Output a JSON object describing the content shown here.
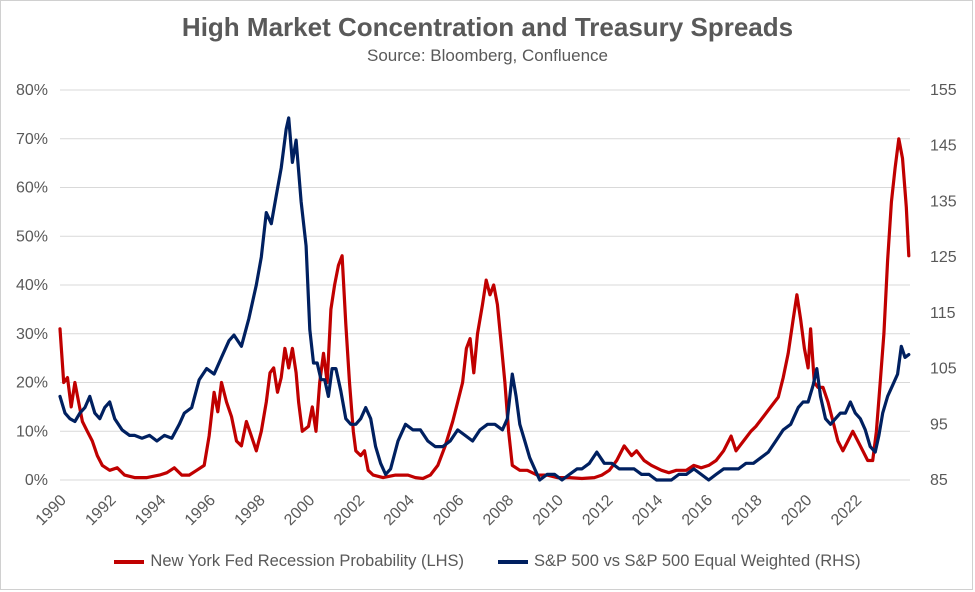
{
  "chart_data": {
    "type": "line",
    "title": "High Market Concentration and Treasury Spreads",
    "subtitle": "Source: Bloomberg, Confluence",
    "x_ticks": [
      "1990",
      "1992",
      "1994",
      "1996",
      "1998",
      "2000",
      "2002",
      "2004",
      "2006",
      "2008",
      "2010",
      "2012",
      "2014",
      "2016",
      "2018",
      "2020",
      "2022"
    ],
    "xlim": [
      1990,
      2024.2
    ],
    "y_left": {
      "ticks": [
        "0%",
        "10%",
        "20%",
        "30%",
        "40%",
        "50%",
        "60%",
        "70%",
        "80%"
      ],
      "lim": [
        0,
        80
      ]
    },
    "y_right": {
      "ticks": [
        "85",
        "95",
        "105",
        "115",
        "125",
        "135",
        "145",
        "155"
      ],
      "lim": [
        85,
        155
      ]
    },
    "grid": "horizontal",
    "legend_position": "bottom",
    "series": [
      {
        "name": "New York Fed Recession Probability (LHS)",
        "axis": "left",
        "color": "#c00000",
        "points": [
          [
            1990.0,
            31
          ],
          [
            1990.15,
            20
          ],
          [
            1990.3,
            21
          ],
          [
            1990.45,
            15
          ],
          [
            1990.6,
            20
          ],
          [
            1990.75,
            16
          ],
          [
            1990.9,
            12
          ],
          [
            1991.1,
            10
          ],
          [
            1991.3,
            8
          ],
          [
            1991.5,
            5
          ],
          [
            1991.7,
            3
          ],
          [
            1992.0,
            2
          ],
          [
            1992.3,
            2.5
          ],
          [
            1992.6,
            1
          ],
          [
            1993.0,
            0.5
          ],
          [
            1993.5,
            0.5
          ],
          [
            1994.0,
            1
          ],
          [
            1994.3,
            1.5
          ],
          [
            1994.6,
            2.5
          ],
          [
            1994.9,
            1
          ],
          [
            1995.2,
            1
          ],
          [
            1995.5,
            2
          ],
          [
            1995.8,
            3
          ],
          [
            1996.0,
            9
          ],
          [
            1996.2,
            18
          ],
          [
            1996.35,
            14
          ],
          [
            1996.5,
            20
          ],
          [
            1996.7,
            16
          ],
          [
            1996.9,
            13
          ],
          [
            1997.1,
            8
          ],
          [
            1997.3,
            7
          ],
          [
            1997.5,
            12
          ],
          [
            1997.7,
            9
          ],
          [
            1997.9,
            6
          ],
          [
            1998.1,
            10
          ],
          [
            1998.3,
            16
          ],
          [
            1998.45,
            22
          ],
          [
            1998.6,
            23
          ],
          [
            1998.75,
            18
          ],
          [
            1998.9,
            21
          ],
          [
            1999.05,
            27
          ],
          [
            1999.2,
            23
          ],
          [
            1999.35,
            27
          ],
          [
            1999.5,
            22
          ],
          [
            1999.6,
            16
          ],
          [
            1999.75,
            10
          ],
          [
            2000.0,
            11
          ],
          [
            2000.15,
            15
          ],
          [
            2000.3,
            10
          ],
          [
            2000.45,
            20
          ],
          [
            2000.6,
            26
          ],
          [
            2000.75,
            20
          ],
          [
            2000.9,
            35
          ],
          [
            2001.05,
            40
          ],
          [
            2001.2,
            44
          ],
          [
            2001.35,
            46
          ],
          [
            2001.5,
            32
          ],
          [
            2001.65,
            20
          ],
          [
            2001.8,
            10
          ],
          [
            2001.9,
            6
          ],
          [
            2002.1,
            5
          ],
          [
            2002.25,
            6
          ],
          [
            2002.4,
            2
          ],
          [
            2002.6,
            1
          ],
          [
            2003.0,
            0.5
          ],
          [
            2003.5,
            1
          ],
          [
            2004.0,
            1
          ],
          [
            2004.3,
            0.5
          ],
          [
            2004.6,
            0.3
          ],
          [
            2004.9,
            1
          ],
          [
            2005.2,
            3
          ],
          [
            2005.5,
            7
          ],
          [
            2005.8,
            12
          ],
          [
            2006.0,
            16
          ],
          [
            2006.2,
            20
          ],
          [
            2006.35,
            27
          ],
          [
            2006.5,
            29
          ],
          [
            2006.65,
            22
          ],
          [
            2006.8,
            30
          ],
          [
            2007.0,
            36
          ],
          [
            2007.15,
            41
          ],
          [
            2007.3,
            38
          ],
          [
            2007.45,
            40
          ],
          [
            2007.6,
            36
          ],
          [
            2007.75,
            28
          ],
          [
            2007.9,
            20
          ],
          [
            2008.05,
            10
          ],
          [
            2008.2,
            3
          ],
          [
            2008.5,
            2
          ],
          [
            2008.8,
            2
          ],
          [
            2009.2,
            1
          ],
          [
            2009.6,
            1
          ],
          [
            2010.0,
            0.5
          ],
          [
            2010.5,
            0.5
          ],
          [
            2011.0,
            0.3
          ],
          [
            2011.5,
            0.5
          ],
          [
            2011.8,
            1
          ],
          [
            2012.1,
            2
          ],
          [
            2012.4,
            4
          ],
          [
            2012.7,
            7
          ],
          [
            2013.0,
            5
          ],
          [
            2013.2,
            6
          ],
          [
            2013.5,
            4
          ],
          [
            2013.8,
            3
          ],
          [
            2014.2,
            2
          ],
          [
            2014.5,
            1.5
          ],
          [
            2014.8,
            2
          ],
          [
            2015.2,
            2
          ],
          [
            2015.5,
            3
          ],
          [
            2015.8,
            2.5
          ],
          [
            2016.1,
            3
          ],
          [
            2016.4,
            4
          ],
          [
            2016.7,
            6
          ],
          [
            2017.0,
            9
          ],
          [
            2017.2,
            6
          ],
          [
            2017.5,
            8
          ],
          [
            2017.8,
            10
          ],
          [
            2018.0,
            11
          ],
          [
            2018.3,
            13
          ],
          [
            2018.6,
            15
          ],
          [
            2018.9,
            17
          ],
          [
            2019.1,
            21
          ],
          [
            2019.3,
            26
          ],
          [
            2019.5,
            33
          ],
          [
            2019.65,
            38
          ],
          [
            2019.8,
            33
          ],
          [
            2019.95,
            27
          ],
          [
            2020.1,
            23
          ],
          [
            2020.2,
            31
          ],
          [
            2020.35,
            20
          ],
          [
            2020.5,
            19
          ],
          [
            2020.7,
            19
          ],
          [
            2020.9,
            16
          ],
          [
            2021.1,
            12
          ],
          [
            2021.3,
            8
          ],
          [
            2021.5,
            6
          ],
          [
            2021.7,
            8
          ],
          [
            2021.9,
            10
          ],
          [
            2022.1,
            8
          ],
          [
            2022.3,
            6
          ],
          [
            2022.5,
            4
          ],
          [
            2022.7,
            4
          ],
          [
            2022.85,
            10
          ],
          [
            2023.0,
            20
          ],
          [
            2023.15,
            30
          ],
          [
            2023.3,
            45
          ],
          [
            2023.45,
            57
          ],
          [
            2023.6,
            64
          ],
          [
            2023.75,
            70
          ],
          [
            2023.9,
            66
          ],
          [
            2024.05,
            56
          ],
          [
            2024.15,
            46
          ]
        ]
      },
      {
        "name": "S&P 500 vs S&P 500 Equal Weighted (RHS)",
        "axis": "right",
        "color": "#002060",
        "points": [
          [
            1990.0,
            100
          ],
          [
            1990.2,
            97
          ],
          [
            1990.4,
            96
          ],
          [
            1990.6,
            95.5
          ],
          [
            1990.8,
            97
          ],
          [
            1991.0,
            98
          ],
          [
            1991.2,
            100
          ],
          [
            1991.4,
            97
          ],
          [
            1991.6,
            96
          ],
          [
            1991.8,
            98
          ],
          [
            1992.0,
            99
          ],
          [
            1992.2,
            96
          ],
          [
            1992.5,
            94
          ],
          [
            1992.8,
            93
          ],
          [
            1993.0,
            93
          ],
          [
            1993.3,
            92.5
          ],
          [
            1993.6,
            93
          ],
          [
            1993.9,
            92
          ],
          [
            1994.2,
            93
          ],
          [
            1994.5,
            92.5
          ],
          [
            1994.8,
            95
          ],
          [
            1995.0,
            97
          ],
          [
            1995.3,
            98
          ],
          [
            1995.6,
            103
          ],
          [
            1995.9,
            105
          ],
          [
            1996.2,
            104
          ],
          [
            1996.5,
            107
          ],
          [
            1996.8,
            110
          ],
          [
            1997.0,
            111
          ],
          [
            1997.3,
            109
          ],
          [
            1997.6,
            114
          ],
          [
            1997.9,
            120
          ],
          [
            1998.1,
            125
          ],
          [
            1998.3,
            133
          ],
          [
            1998.5,
            131
          ],
          [
            1998.7,
            136
          ],
          [
            1998.9,
            141
          ],
          [
            1999.1,
            148
          ],
          [
            1999.2,
            150
          ],
          [
            1999.35,
            142
          ],
          [
            1999.5,
            146
          ],
          [
            1999.7,
            135
          ],
          [
            1999.9,
            127
          ],
          [
            2000.05,
            112
          ],
          [
            2000.2,
            106
          ],
          [
            2000.35,
            106
          ],
          [
            2000.5,
            103
          ],
          [
            2000.65,
            103
          ],
          [
            2000.8,
            100
          ],
          [
            2000.95,
            105
          ],
          [
            2001.1,
            105
          ],
          [
            2001.3,
            101
          ],
          [
            2001.5,
            96
          ],
          [
            2001.7,
            95
          ],
          [
            2001.9,
            95
          ],
          [
            2002.1,
            96
          ],
          [
            2002.3,
            98
          ],
          [
            2002.5,
            96
          ],
          [
            2002.7,
            91
          ],
          [
            2002.9,
            88
          ],
          [
            2003.1,
            86
          ],
          [
            2003.3,
            87
          ],
          [
            2003.6,
            92
          ],
          [
            2003.9,
            95
          ],
          [
            2004.2,
            94
          ],
          [
            2004.5,
            94
          ],
          [
            2004.8,
            92
          ],
          [
            2005.1,
            91
          ],
          [
            2005.4,
            91
          ],
          [
            2005.7,
            92
          ],
          [
            2006.0,
            94
          ],
          [
            2006.3,
            93
          ],
          [
            2006.6,
            92
          ],
          [
            2006.9,
            94
          ],
          [
            2007.2,
            95
          ],
          [
            2007.5,
            95
          ],
          [
            2007.8,
            94
          ],
          [
            2008.0,
            96
          ],
          [
            2008.2,
            104
          ],
          [
            2008.35,
            100
          ],
          [
            2008.5,
            95
          ],
          [
            2008.7,
            92
          ],
          [
            2008.9,
            89
          ],
          [
            2009.1,
            87
          ],
          [
            2009.3,
            85
          ],
          [
            2009.6,
            86
          ],
          [
            2009.9,
            86
          ],
          [
            2010.2,
            85
          ],
          [
            2010.5,
            86
          ],
          [
            2010.8,
            87
          ],
          [
            2011.0,
            87
          ],
          [
            2011.3,
            88
          ],
          [
            2011.6,
            90
          ],
          [
            2011.9,
            88
          ],
          [
            2012.2,
            88
          ],
          [
            2012.5,
            87
          ],
          [
            2012.8,
            87
          ],
          [
            2013.1,
            87
          ],
          [
            2013.4,
            86
          ],
          [
            2013.7,
            86
          ],
          [
            2014.0,
            85
          ],
          [
            2014.3,
            85
          ],
          [
            2014.6,
            85
          ],
          [
            2014.9,
            86
          ],
          [
            2015.2,
            86
          ],
          [
            2015.5,
            87
          ],
          [
            2015.8,
            86
          ],
          [
            2016.1,
            85
          ],
          [
            2016.4,
            86
          ],
          [
            2016.7,
            87
          ],
          [
            2017.0,
            87
          ],
          [
            2017.3,
            87
          ],
          [
            2017.6,
            88
          ],
          [
            2017.9,
            88
          ],
          [
            2018.2,
            89
          ],
          [
            2018.5,
            90
          ],
          [
            2018.8,
            92
          ],
          [
            2019.1,
            94
          ],
          [
            2019.4,
            95
          ],
          [
            2019.7,
            98
          ],
          [
            2019.9,
            99
          ],
          [
            2020.1,
            99
          ],
          [
            2020.3,
            102
          ],
          [
            2020.45,
            105
          ],
          [
            2020.6,
            100
          ],
          [
            2020.8,
            96
          ],
          [
            2021.0,
            95
          ],
          [
            2021.2,
            96
          ],
          [
            2021.4,
            97
          ],
          [
            2021.6,
            97
          ],
          [
            2021.8,
            99
          ],
          [
            2022.0,
            97
          ],
          [
            2022.2,
            96
          ],
          [
            2022.4,
            94
          ],
          [
            2022.6,
            91
          ],
          [
            2022.8,
            90
          ],
          [
            2022.95,
            93
          ],
          [
            2023.1,
            97
          ],
          [
            2023.3,
            100
          ],
          [
            2023.5,
            102
          ],
          [
            2023.7,
            104
          ],
          [
            2023.85,
            109
          ],
          [
            2024.0,
            107
          ],
          [
            2024.15,
            107.5
          ]
        ]
      }
    ]
  }
}
